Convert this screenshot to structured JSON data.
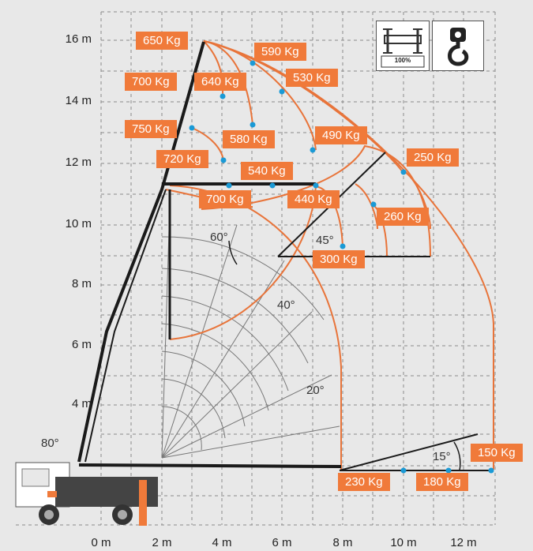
{
  "chart_data": {
    "type": "load-range-diagram",
    "y_axis_labels": [
      "16 m",
      "14 m",
      "12 m",
      "10 m",
      "8 m",
      "6 m",
      "4 m"
    ],
    "x_axis_labels": [
      "0 m",
      "2 m",
      "4 m",
      "6 m",
      "8 m",
      "10 m",
      "12 m"
    ],
    "angle_labels": [
      "80°",
      "60°",
      "40°",
      "20°",
      "45°",
      "15°"
    ],
    "load_labels": [
      "650 Kg",
      "590 Kg",
      "700 Kg",
      "640 Kg",
      "530 Kg",
      "750 Kg",
      "580 Kg",
      "490 Kg",
      "720 Kg",
      "540 Kg",
      "250 Kg",
      "700 Kg",
      "440 Kg",
      "260 Kg",
      "300 Kg",
      "150 Kg",
      "230 Kg",
      "180 Kg"
    ],
    "outrigger_icon_text": "100%"
  }
}
